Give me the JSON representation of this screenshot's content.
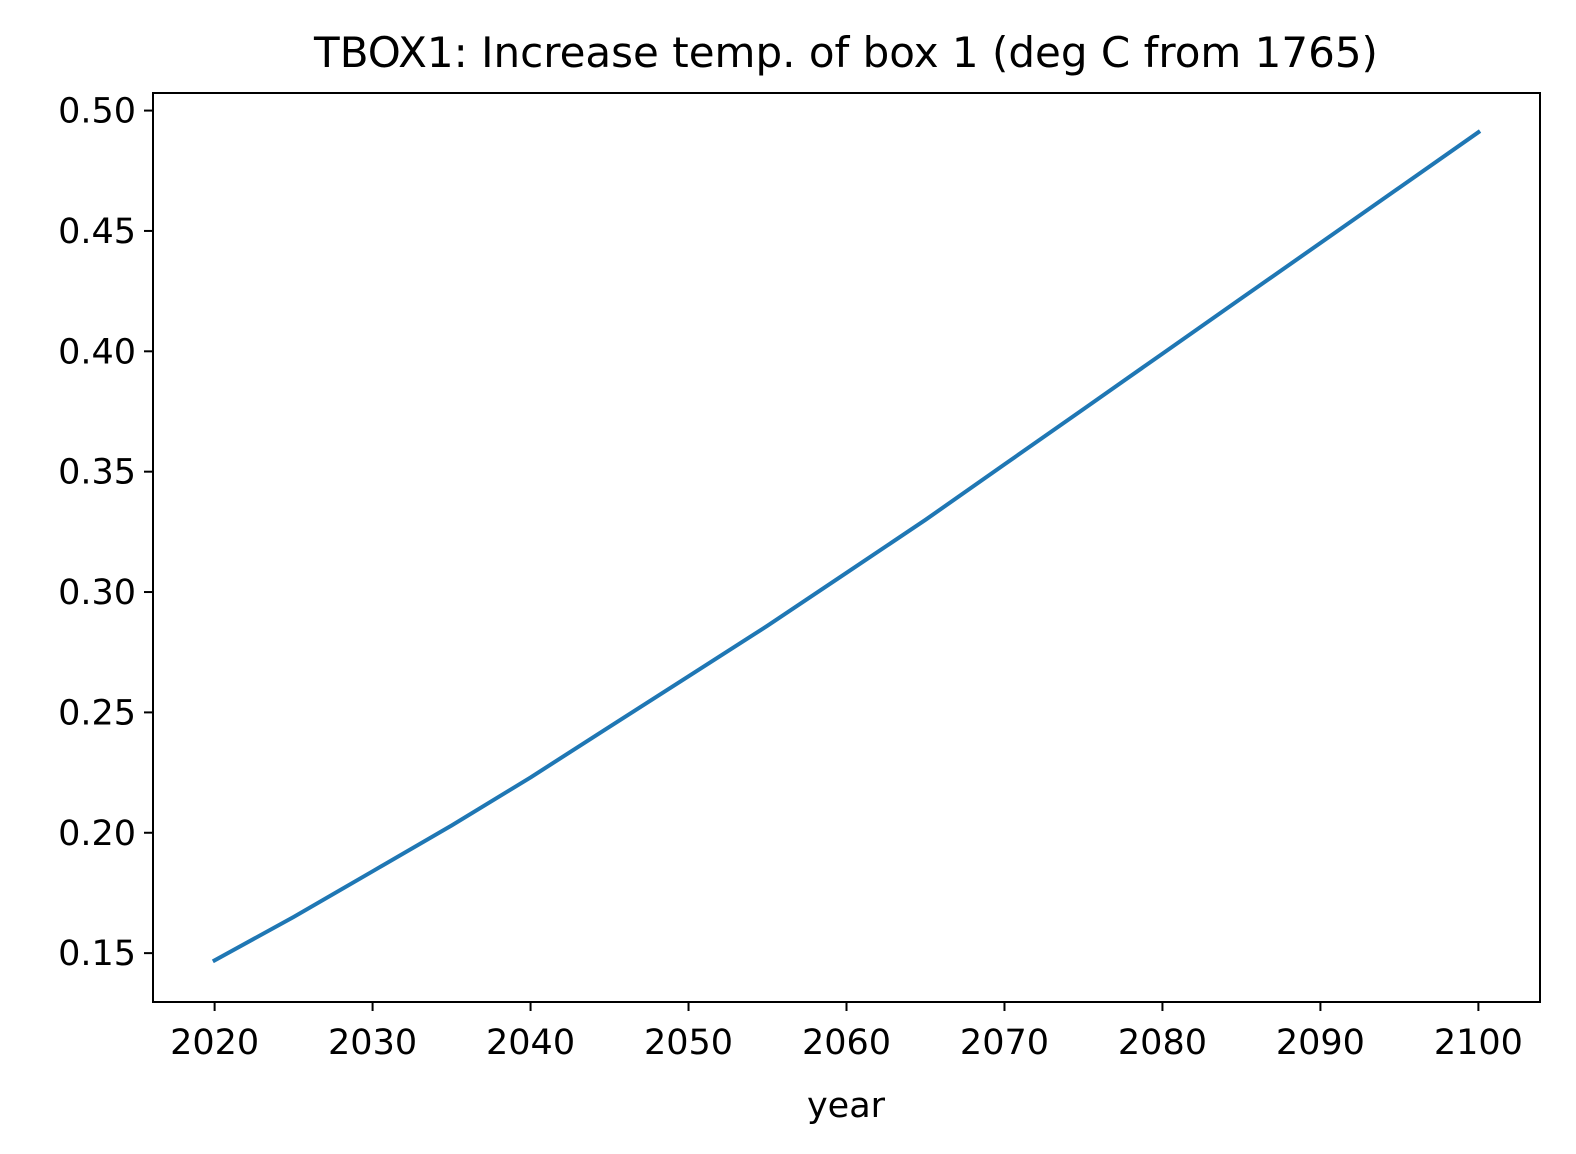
{
  "chart_data": {
    "type": "line",
    "title": "TBOX1: Increase temp. of box 1 (deg C from 1765)",
    "xlabel": "year",
    "ylabel": "",
    "xlim": [
      2016.1,
      2103.9
    ],
    "ylim": [
      0.1297,
      0.5073
    ],
    "grid": false,
    "x_ticks": [
      2020,
      2030,
      2040,
      2050,
      2060,
      2070,
      2080,
      2090,
      2100
    ],
    "x_tick_labels": [
      "2020",
      "2030",
      "2040",
      "2050",
      "2060",
      "2070",
      "2080",
      "2090",
      "2100"
    ],
    "y_ticks": [
      0.15,
      0.2,
      0.25,
      0.3,
      0.35,
      0.4,
      0.45,
      0.5
    ],
    "y_tick_labels": [
      "0.15",
      "0.20",
      "0.25",
      "0.30",
      "0.35",
      "0.40",
      "0.45",
      "0.50"
    ],
    "series": [
      {
        "color": "#1f77b4",
        "x": [
          2020,
          2025,
          2030,
          2035,
          2040,
          2045,
          2050,
          2055,
          2060,
          2065,
          2070,
          2075,
          2080,
          2085,
          2090,
          2095,
          2100
        ],
        "y": [
          0.147,
          0.165,
          0.184,
          0.203,
          0.223,
          0.244,
          0.265,
          0.286,
          0.308,
          0.33,
          0.353,
          0.376,
          0.399,
          0.422,
          0.445,
          0.468,
          0.491
        ]
      }
    ]
  }
}
